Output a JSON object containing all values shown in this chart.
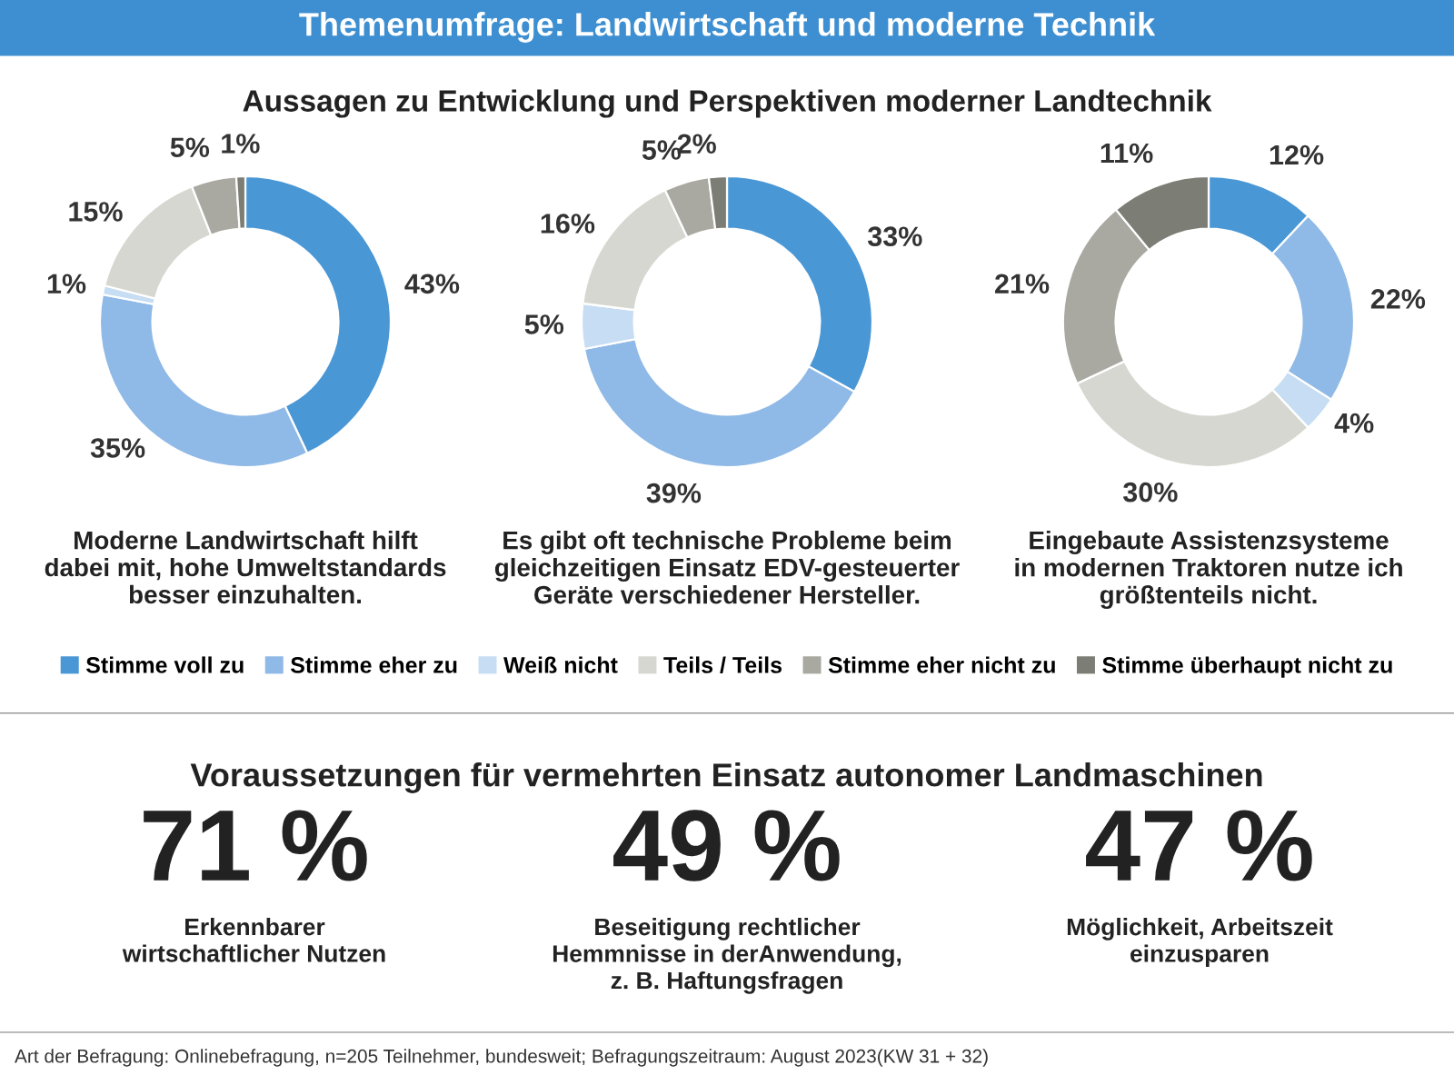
{
  "chart_data": [
    {
      "type": "donut",
      "title": "Themenumfrage: Landwirtschaft und moderne Technik",
      "subtitle": "Aussagen zu Entwicklung und Perspektiven moderner Landtechnik",
      "xlabel": "Moderne Landwirtschaft hilft\ndabei mit, hohe Umweltstandards\nbesser einzuhalten.",
      "legend": "bottom",
      "categories": [
        "Stimme voll zu",
        "Stimme eher zu",
        "Weiß nicht",
        "Teils / Teils",
        "Stimme eher nicht zu",
        "Stimme überhaupt nicht zu"
      ],
      "values": [
        43,
        35,
        1,
        15,
        5,
        1
      ],
      "value_labels": [
        "43%",
        "35%",
        "1%",
        "15%",
        "5%",
        "1%"
      ],
      "colors": [
        "#4a97d6",
        "#8fb9e6",
        "#c6ddf3",
        "#d7d7d1",
        "#a9a9a2",
        "#7c7d74"
      ]
    },
    {
      "type": "donut",
      "xlabel": "Es gibt oft technische Probleme beim\ngleichzeitigen Einsatz EDV-gesteuerter\nGeräte verschiedener Hersteller.",
      "values": [
        33,
        39,
        5,
        16,
        5,
        2
      ],
      "value_labels": [
        "33%",
        "39%",
        "5%",
        "16%",
        "5%",
        "2%"
      ],
      "colors": [
        "#4a97d6",
        "#8fb9e6",
        "#c6ddf3",
        "#d7d7d1",
        "#a9a9a2",
        "#7c7d74"
      ]
    },
    {
      "type": "donut",
      "xlabel": "Eingebaute Assistenzsysteme\nin modernen Traktoren nutze ich\ngrößtenteils nicht.",
      "values": [
        12,
        22,
        4,
        30,
        21,
        11
      ],
      "value_labels": [
        "12%",
        "22%",
        "4%",
        "30%",
        "21%",
        "11%"
      ],
      "colors": [
        "#4a97d6",
        "#8fb9e6",
        "#c6ddf3",
        "#d7d7d1",
        "#a9a9a2",
        "#7c7d74"
      ]
    },
    {
      "type": "other",
      "title": "Voraussetzungen für vermehrten Einsatz autonomer Landmaschinen",
      "categories": [
        "Erkennbarer\nwirtschaftlicher Nutzen",
        "Beseitigung rechtlicher\nHemmnisse in derAnwendung,\nz. B. Haftungsfragen",
        "Möglichkeit, Arbeitszeit\neinzusparen"
      ],
      "annotations": [
        "71 %",
        "49 %",
        "47 %",
        "Art der Befragung: Onlinebefragung, n=205 Teilnehmer, bundesweit; Befragungszeitraum: August 2023(KW 31 + 32)"
      ]
    }
  ]
}
